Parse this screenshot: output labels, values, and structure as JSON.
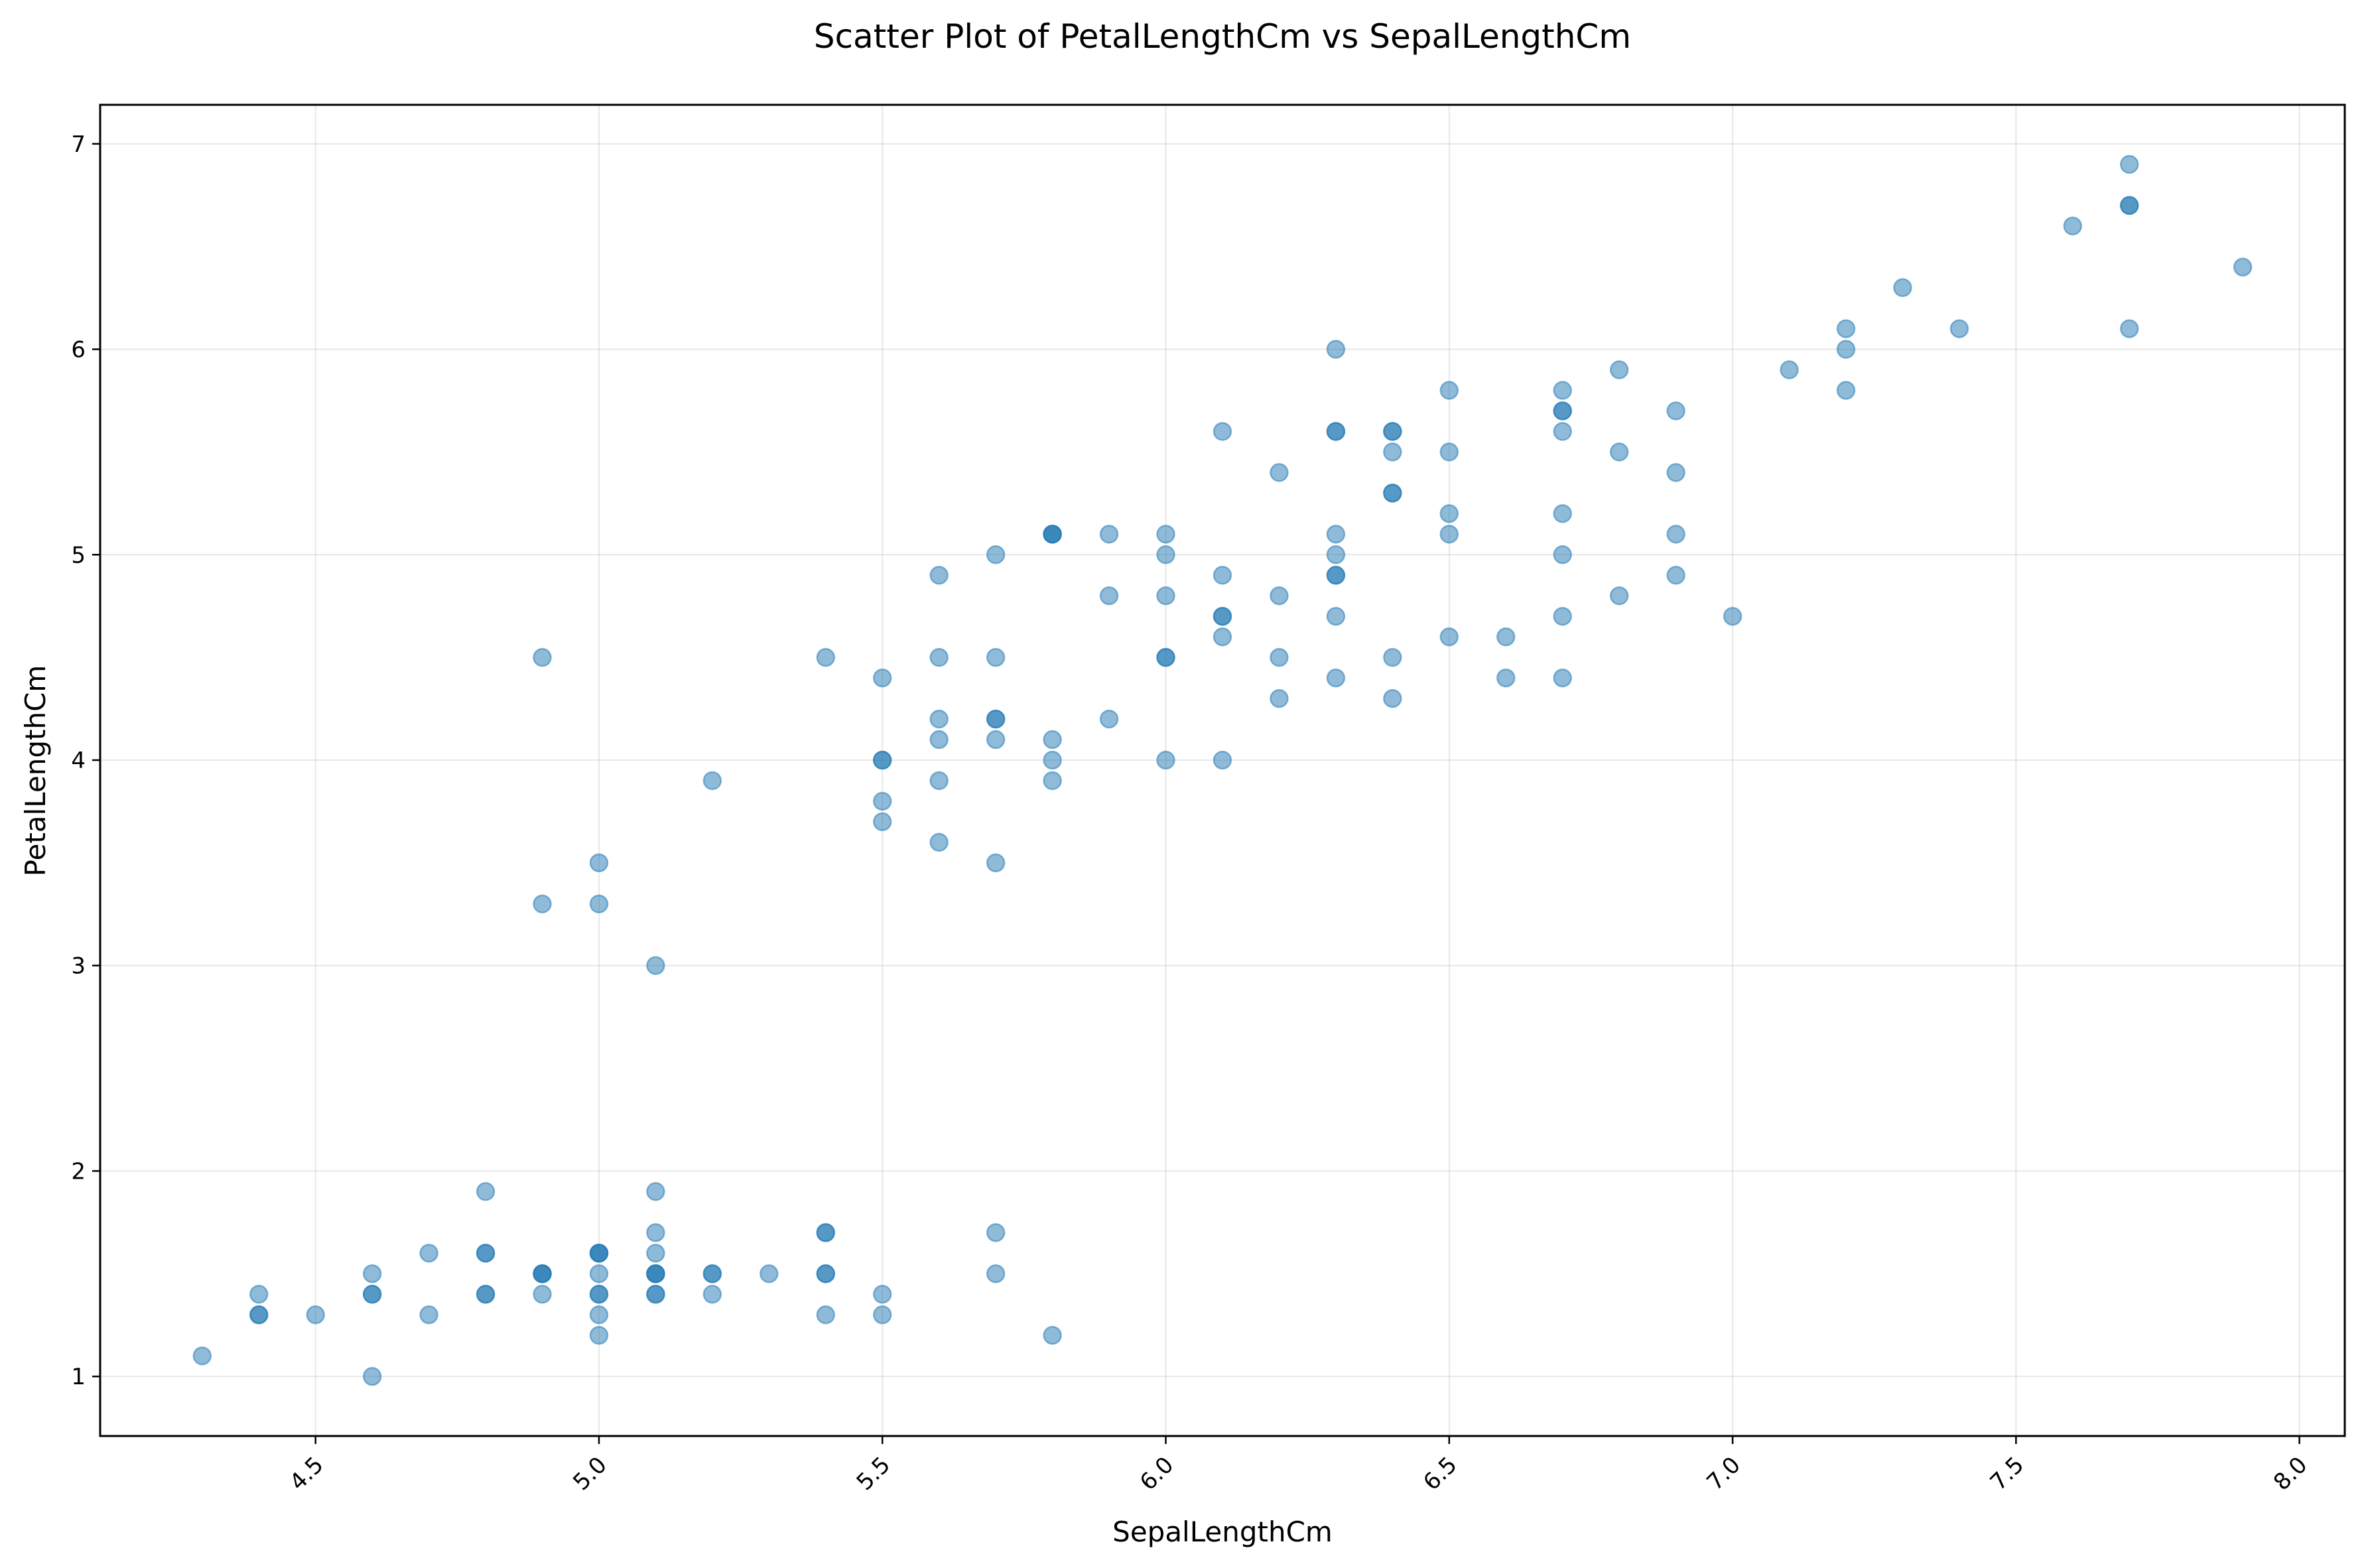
{
  "chart_data": {
    "type": "scatter",
    "title": "Scatter Plot of PetalLengthCm vs SepalLengthCm",
    "xlabel": "SepalLengthCm",
    "ylabel": "PetalLengthCm",
    "xlim": [
      4.12,
      8.08
    ],
    "ylim": [
      0.71,
      7.19
    ],
    "x_ticks": [
      4.5,
      5.0,
      5.5,
      6.0,
      6.5,
      7.0,
      7.5,
      8.0
    ],
    "x_tick_labels": [
      "4.5",
      "5.0",
      "5.5",
      "6.0",
      "6.5",
      "7.0",
      "7.5",
      "8.0"
    ],
    "y_ticks": [
      1,
      2,
      3,
      4,
      5,
      6,
      7
    ],
    "y_tick_labels": [
      "1",
      "2",
      "3",
      "4",
      "5",
      "6",
      "7"
    ],
    "grid": true,
    "marker_color": "#1f77b4",
    "marker_opacity": 0.5,
    "points": [
      [
        5.1,
        1.4
      ],
      [
        4.9,
        1.4
      ],
      [
        4.7,
        1.3
      ],
      [
        4.6,
        1.5
      ],
      [
        5.0,
        1.4
      ],
      [
        5.4,
        1.7
      ],
      [
        4.6,
        1.4
      ],
      [
        5.0,
        1.5
      ],
      [
        4.4,
        1.4
      ],
      [
        4.9,
        1.5
      ],
      [
        5.4,
        1.5
      ],
      [
        4.8,
        1.6
      ],
      [
        4.8,
        1.4
      ],
      [
        4.3,
        1.1
      ],
      [
        5.8,
        1.2
      ],
      [
        5.7,
        1.5
      ],
      [
        5.4,
        1.3
      ],
      [
        5.1,
        1.4
      ],
      [
        5.7,
        1.7
      ],
      [
        5.1,
        1.5
      ],
      [
        5.4,
        1.7
      ],
      [
        5.1,
        1.5
      ],
      [
        4.6,
        1.0
      ],
      [
        5.1,
        1.7
      ],
      [
        4.8,
        1.9
      ],
      [
        5.0,
        1.6
      ],
      [
        5.0,
        1.6
      ],
      [
        5.2,
        1.5
      ],
      [
        5.2,
        1.4
      ],
      [
        4.7,
        1.6
      ],
      [
        4.8,
        1.6
      ],
      [
        5.4,
        1.5
      ],
      [
        5.2,
        1.5
      ],
      [
        5.5,
        1.4
      ],
      [
        4.9,
        1.5
      ],
      [
        5.0,
        1.2
      ],
      [
        5.5,
        1.3
      ],
      [
        4.9,
        1.5
      ],
      [
        4.4,
        1.3
      ],
      [
        5.1,
        1.5
      ],
      [
        5.0,
        1.3
      ],
      [
        4.5,
        1.3
      ],
      [
        4.4,
        1.3
      ],
      [
        5.0,
        1.6
      ],
      [
        5.1,
        1.9
      ],
      [
        4.8,
        1.4
      ],
      [
        5.1,
        1.6
      ],
      [
        4.6,
        1.4
      ],
      [
        5.3,
        1.5
      ],
      [
        5.0,
        1.4
      ],
      [
        7.0,
        4.7
      ],
      [
        6.4,
        4.5
      ],
      [
        6.9,
        4.9
      ],
      [
        5.5,
        4.0
      ],
      [
        6.5,
        4.6
      ],
      [
        5.7,
        4.5
      ],
      [
        6.3,
        4.7
      ],
      [
        4.9,
        3.3
      ],
      [
        6.6,
        4.6
      ],
      [
        5.2,
        3.9
      ],
      [
        5.0,
        3.5
      ],
      [
        5.9,
        4.2
      ],
      [
        6.0,
        4.0
      ],
      [
        6.1,
        4.7
      ],
      [
        5.6,
        3.6
      ],
      [
        6.7,
        4.4
      ],
      [
        5.6,
        4.5
      ],
      [
        5.8,
        4.1
      ],
      [
        6.2,
        4.5
      ],
      [
        5.6,
        3.9
      ],
      [
        5.9,
        4.8
      ],
      [
        6.1,
        4.0
      ],
      [
        6.3,
        4.9
      ],
      [
        6.1,
        4.7
      ],
      [
        6.4,
        4.3
      ],
      [
        6.6,
        4.4
      ],
      [
        6.8,
        4.8
      ],
      [
        6.7,
        5.0
      ],
      [
        6.0,
        4.5
      ],
      [
        5.7,
        3.5
      ],
      [
        5.5,
        3.8
      ],
      [
        5.5,
        3.7
      ],
      [
        5.8,
        3.9
      ],
      [
        6.0,
        5.1
      ],
      [
        5.4,
        4.5
      ],
      [
        6.0,
        4.5
      ],
      [
        6.7,
        4.7
      ],
      [
        6.3,
        4.4
      ],
      [
        5.6,
        4.1
      ],
      [
        5.5,
        4.0
      ],
      [
        5.5,
        4.4
      ],
      [
        6.1,
        4.6
      ],
      [
        5.8,
        4.0
      ],
      [
        5.0,
        3.3
      ],
      [
        5.6,
        4.2
      ],
      [
        5.7,
        4.2
      ],
      [
        5.7,
        4.2
      ],
      [
        6.2,
        4.3
      ],
      [
        5.1,
        3.0
      ],
      [
        5.7,
        4.1
      ],
      [
        6.3,
        6.0
      ],
      [
        5.8,
        5.1
      ],
      [
        7.1,
        5.9
      ],
      [
        6.3,
        5.6
      ],
      [
        6.5,
        5.8
      ],
      [
        7.6,
        6.6
      ],
      [
        4.9,
        4.5
      ],
      [
        7.3,
        6.3
      ],
      [
        6.7,
        5.8
      ],
      [
        7.2,
        6.1
      ],
      [
        6.5,
        5.1
      ],
      [
        6.4,
        5.3
      ],
      [
        6.8,
        5.5
      ],
      [
        5.7,
        5.0
      ],
      [
        5.8,
        5.1
      ],
      [
        6.4,
        5.3
      ],
      [
        6.5,
        5.5
      ],
      [
        7.7,
        6.7
      ],
      [
        7.7,
        6.9
      ],
      [
        6.0,
        5.0
      ],
      [
        6.9,
        5.7
      ],
      [
        5.6,
        4.9
      ],
      [
        7.7,
        6.7
      ],
      [
        6.3,
        4.9
      ],
      [
        6.7,
        5.7
      ],
      [
        7.2,
        6.0
      ],
      [
        6.2,
        4.8
      ],
      [
        6.1,
        4.9
      ],
      [
        6.4,
        5.6
      ],
      [
        7.2,
        5.8
      ],
      [
        7.4,
        6.1
      ],
      [
        7.9,
        6.4
      ],
      [
        6.4,
        5.6
      ],
      [
        6.3,
        5.1
      ],
      [
        6.1,
        5.6
      ],
      [
        7.7,
        6.1
      ],
      [
        6.3,
        5.6
      ],
      [
        6.4,
        5.5
      ],
      [
        6.0,
        4.8
      ],
      [
        6.9,
        5.4
      ],
      [
        6.7,
        5.6
      ],
      [
        6.9,
        5.1
      ],
      [
        5.8,
        5.1
      ],
      [
        6.8,
        5.9
      ],
      [
        6.7,
        5.7
      ],
      [
        6.7,
        5.2
      ],
      [
        6.3,
        5.0
      ],
      [
        6.5,
        5.2
      ],
      [
        6.2,
        5.4
      ],
      [
        5.9,
        5.1
      ]
    ]
  }
}
